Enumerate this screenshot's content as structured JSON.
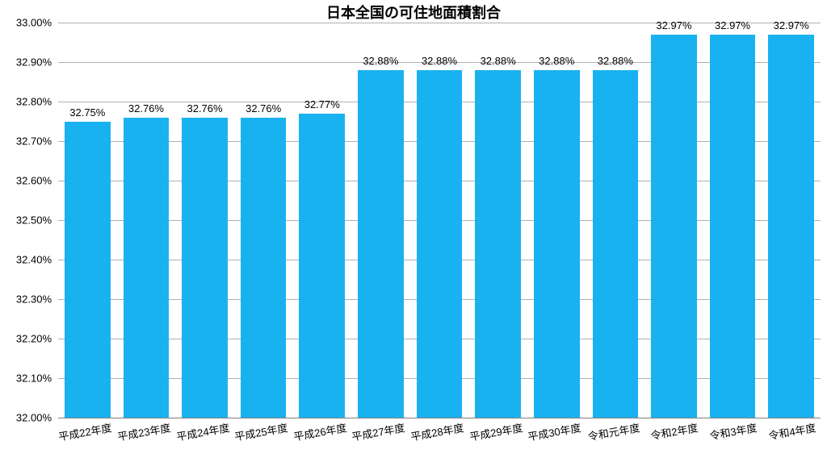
{
  "chart": {
    "type": "bar",
    "title": "日本全国の可住地面積割合",
    "title_fontsize": 18,
    "title_fontweight": 700,
    "background_color": "#ffffff",
    "bar_color": "#19b2f1",
    "grid_color": "#b0b0b0",
    "baseline_color": "#808080",
    "text_color": "#000000",
    "label_fontsize": 13,
    "bar_width_ratio": 0.78,
    "y_axis": {
      "min": 32.0,
      "max": 33.0,
      "tick_step": 0.1,
      "tick_format_suffix": "%",
      "ticks": [
        "32.00%",
        "32.10%",
        "32.20%",
        "32.30%",
        "32.40%",
        "32.50%",
        "32.60%",
        "32.70%",
        "32.80%",
        "32.90%",
        "33.00%"
      ]
    },
    "x_labels_rotation_deg": -10,
    "categories": [
      "平成22年度",
      "平成23年度",
      "平成24年度",
      "平成25年度",
      "平成26年度",
      "平成27年度",
      "平成28年度",
      "平成29年度",
      "平成30年度",
      "令和元年度",
      "令和2年度",
      "令和3年度",
      "令和4年度"
    ],
    "values": [
      32.75,
      32.76,
      32.76,
      32.76,
      32.77,
      32.88,
      32.88,
      32.88,
      32.88,
      32.88,
      32.97,
      32.97,
      32.97
    ],
    "value_labels": [
      "32.75%",
      "32.76%",
      "32.76%",
      "32.76%",
      "32.77%",
      "32.88%",
      "32.88%",
      "32.88%",
      "32.88%",
      "32.88%",
      "32.97%",
      "32.97%",
      "32.97%"
    ]
  }
}
